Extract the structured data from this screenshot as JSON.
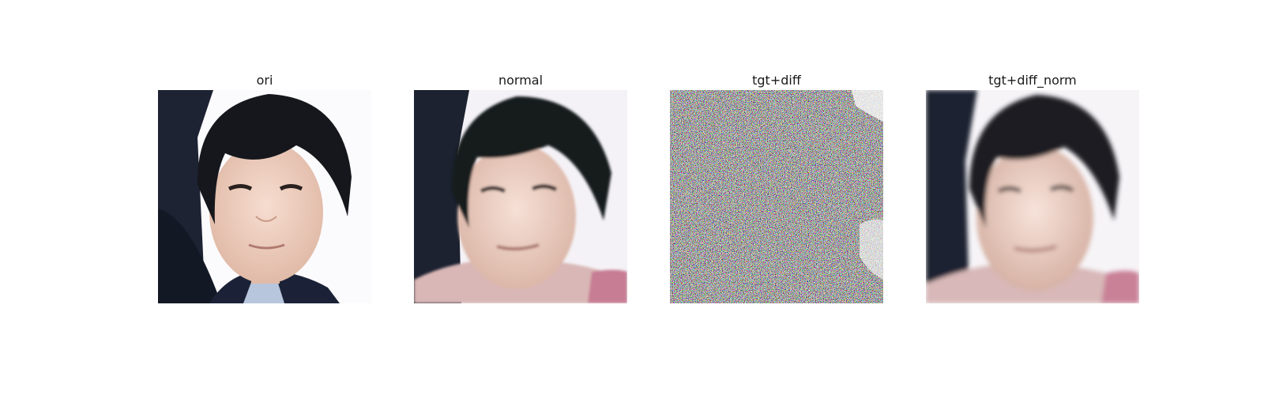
{
  "figure": {
    "panels": [
      {
        "title": "ori",
        "image": "face-photo"
      },
      {
        "title": "normal",
        "image": "face-photo-smoothed"
      },
      {
        "title": "tgt+diff",
        "image": "noise-pattern"
      },
      {
        "title": "tgt+diff_norm",
        "image": "face-photo-blurred"
      }
    ]
  }
}
